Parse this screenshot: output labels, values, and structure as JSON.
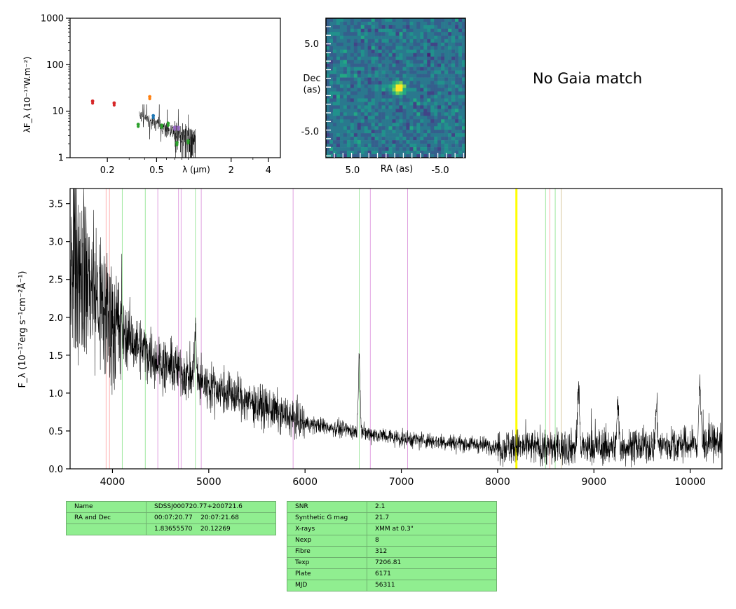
{
  "sed": {
    "ylabel": "λF_λ (10⁻¹⁷W.m⁻²)",
    "xlabel": "λ (µm)",
    "xticks": [
      "0.2",
      "0.5",
      "2",
      "4"
    ],
    "yticks": [
      "1",
      "10",
      "100",
      "1000"
    ],
    "xlim": [
      0.1,
      5
    ],
    "ylim": [
      1,
      1000
    ],
    "xscale": "log",
    "yscale": "log",
    "points": [
      {
        "x": 0.152,
        "y": 16.5,
        "color": "#d62728"
      },
      {
        "x": 0.227,
        "y": 15.0,
        "color": "#d62728"
      },
      {
        "x": 0.355,
        "y": 5.2,
        "color": "#2ca02c"
      },
      {
        "x": 0.44,
        "y": 20.5,
        "color": "#ff7f0e"
      },
      {
        "x": 0.47,
        "y": 8.0,
        "color": "#1f77b4"
      },
      {
        "x": 0.55,
        "y": 5.0,
        "color": "#2ca02c"
      },
      {
        "x": 0.62,
        "y": 5.5,
        "color": "#2ca02c"
      },
      {
        "x": 0.7,
        "y": 4.5,
        "color": "#9467bd"
      },
      {
        "x": 0.75,
        "y": 4.5,
        "color": "#9467bd"
      },
      {
        "x": 0.73,
        "y": 2.1,
        "color": "#2ca02c"
      },
      {
        "x": 0.9,
        "y": 2.3,
        "color": "#2ca02c"
      }
    ]
  },
  "cutout": {
    "ylabel_line1": "Dec",
    "ylabel_line2": "(as)",
    "xlabel": "RA (as)",
    "xticks": [
      "5.0",
      "-5.0"
    ],
    "yticks": [
      "5.0",
      "-5.0"
    ]
  },
  "gaia_text": "No Gaia match",
  "chart_data": {
    "type": "line",
    "title": "",
    "xlabel": "",
    "ylabel": "F_λ (10⁻¹⁷erg s⁻¹cm⁻²Å⁻¹)",
    "xlim": [
      3560,
      10330
    ],
    "ylim": [
      0,
      3.7
    ],
    "xticks": [
      "4000",
      "5000",
      "6000",
      "7000",
      "8000",
      "9000",
      "10000"
    ],
    "yticks": [
      "0.0",
      "0.5",
      "1.0",
      "1.5",
      "2.0",
      "2.5",
      "3.0",
      "3.5"
    ],
    "continuum": [
      [
        3560,
        3.0
      ],
      [
        3700,
        2.6
      ],
      [
        3900,
        2.1
      ],
      [
        4100,
        1.8
      ],
      [
        4300,
        1.6
      ],
      [
        4500,
        1.4
      ],
      [
        4700,
        1.3
      ],
      [
        4900,
        1.15
      ],
      [
        5200,
        1.0
      ],
      [
        5500,
        0.85
      ],
      [
        5800,
        0.7
      ],
      [
        6000,
        0.6
      ],
      [
        6500,
        0.5
      ],
      [
        7000,
        0.4
      ],
      [
        7500,
        0.35
      ],
      [
        8000,
        0.3
      ],
      [
        8500,
        0.28
      ],
      [
        9000,
        0.28
      ],
      [
        9500,
        0.3
      ],
      [
        10000,
        0.32
      ],
      [
        10330,
        0.35
      ]
    ],
    "emission_features": [
      [
        4860,
        1.85
      ],
      [
        6563,
        1.45
      ],
      [
        8840,
        1.1
      ],
      [
        9250,
        0.85
      ],
      [
        9650,
        0.8
      ],
      [
        10100,
        1.15
      ]
    ],
    "vlines": [
      {
        "x": 3934,
        "color": "#ffb0b0"
      },
      {
        "x": 3969,
        "color": "#ffb0b0"
      },
      {
        "x": 4102,
        "color": "#a0e8a0"
      },
      {
        "x": 4341,
        "color": "#a0e8a0"
      },
      {
        "x": 4471,
        "color": "#e0a0e0"
      },
      {
        "x": 4686,
        "color": "#e0a0e0"
      },
      {
        "x": 4713,
        "color": "#e0a0e0"
      },
      {
        "x": 4861,
        "color": "#a0e8a0"
      },
      {
        "x": 4922,
        "color": "#e0a0e0"
      },
      {
        "x": 5876,
        "color": "#e0a0e0"
      },
      {
        "x": 6563,
        "color": "#a0e8a0"
      },
      {
        "x": 6678,
        "color": "#e0a0e0"
      },
      {
        "x": 7065,
        "color": "#e0a0e0"
      },
      {
        "x": 8498,
        "color": "#a0e8a0"
      },
      {
        "x": 8542,
        "color": "#ffb0b0"
      },
      {
        "x": 8598,
        "color": "#a0e8a0"
      },
      {
        "x": 8662,
        "color": "#d8c8a0"
      }
    ],
    "highlight": {
      "x": 8195,
      "color": "#ffff00"
    }
  },
  "table1": [
    [
      "Name",
      "SDSSJ000720.77+200721.6"
    ],
    [
      "RA and Dec",
      "00:07:20.77    20:07:21.68"
    ],
    [
      "",
      "1.83655570    20.12269"
    ]
  ],
  "table2": [
    [
      "SNR",
      "2.1"
    ],
    [
      "Synthetic G mag",
      "21.7"
    ],
    [
      "X-rays",
      "XMM at 0.3\""
    ],
    [
      "Nexp",
      "8"
    ],
    [
      "Fibre",
      "312"
    ],
    [
      "Texp",
      "7206.81"
    ],
    [
      "Plate",
      "6171"
    ],
    [
      "MJD",
      "56311"
    ]
  ]
}
